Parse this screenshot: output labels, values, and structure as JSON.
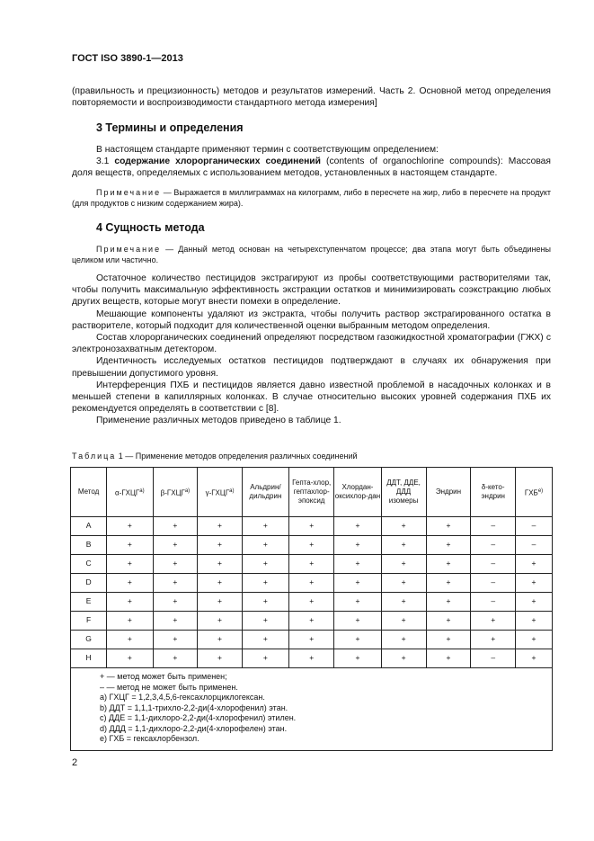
{
  "header": "ГОСТ ISO 3890-1—2013",
  "intro": "(правильность и прецизионность) методов и результатов измерений. Часть 2. Основной метод определения повторяемости и воспроизводимости стандартного метода измерения]",
  "s3": {
    "title": "3 Термины и определения",
    "p1": "В настоящем стандарте применяют термин с соответствующим определением:",
    "term_num": "3.1 ",
    "term": "содержание хлорорганических соединений",
    "term_rest": " (contents of organochlorine compounds): Массовая доля веществ, определяемых с использованием методов, установленных в настоящем стандарте.",
    "note_label": "Примечание",
    "note": " — Выражается в миллиграммах на килограмм, либо в пересчете на жир, либо в пересчете на продукт (для продуктов с низким содержанием жира)."
  },
  "s4": {
    "title": "4 Сущность метода",
    "note_label": "Примечание",
    "note": " — Данный метод основан на четырехступенчатом процессе; два этапа могут быть объединены целиком или частично.",
    "paras": [
      "Остаточное количество пестицидов экстрагируют из пробы соответствующими растворителями так, чтобы получить максимальную эффективность экстракции остатков и минимизировать соэкстракцию любых других веществ, которые могут внести помехи в определение.",
      "Мешающие компоненты удаляют из экстракта, чтобы получить раствор экстрагированного остатка в растворителе, который подходит для количественной оценки выбранным методом определения.",
      "Состав хлорорганических соединений определяют посредством газожидкостной хроматографии (ГЖХ) с электронозахватным детектором.",
      "Идентичность исследуемых остатков пестицидов подтверждают в случаях их обнаружения при превышении допустимого уровня.",
      "Интерференция ПХБ и пестицидов является давно известной проблемой в насадочных колонках и в меньшей степени в капиллярных колонках. В случае относительно высоких уровней содержания ПХБ их рекомендуется определять в соответствии с [8].",
      "Применение различных методов приведено в таблице 1."
    ]
  },
  "table": {
    "caption_label": "Таблица",
    "caption": " 1 — Применение методов определения различных соединений",
    "headers": [
      "Метод",
      "α-ГХЦГ",
      "β-ГХЦГ",
      "γ-ГХЦГ",
      "Альдрин/ дильдрин",
      "Гепта-хлор, гептахлор-эпоксид",
      "Хлордан-оксихлор-дан",
      "ДДТ, ДДЕ, ДДД изомеры",
      "Эндрин",
      "δ-кето-эндрин",
      "ГХБ"
    ],
    "rows": [
      [
        "A",
        "+",
        "+",
        "+",
        "+",
        "+",
        "+",
        "+",
        "+",
        "–",
        "–"
      ],
      [
        "B",
        "+",
        "+",
        "+",
        "+",
        "+",
        "+",
        "+",
        "+",
        "–",
        "–"
      ],
      [
        "C",
        "+",
        "+",
        "+",
        "+",
        "+",
        "+",
        "+",
        "+",
        "–",
        "+"
      ],
      [
        "D",
        "+",
        "+",
        "+",
        "+",
        "+",
        "+",
        "+",
        "+",
        "–",
        "+"
      ],
      [
        "E",
        "+",
        "+",
        "+",
        "+",
        "+",
        "+",
        "+",
        "+",
        "–",
        "+"
      ],
      [
        "F",
        "+",
        "+",
        "+",
        "+",
        "+",
        "+",
        "+",
        "+",
        "+",
        "+"
      ],
      [
        "G",
        "+",
        "+",
        "+",
        "+",
        "+",
        "+",
        "+",
        "+",
        "+",
        "+"
      ],
      [
        "H",
        "+",
        "+",
        "+",
        "+",
        "+",
        "+",
        "+",
        "+",
        "–",
        "+"
      ]
    ],
    "footnotes": [
      "+ — метод может быть применен;",
      "– — метод не может быть применен.",
      "a) ГХЦГ = 1,2,3,4,5,6-гексахлорциклогексан.",
      "b) ДДТ = 1,1,1-трихло-2,2-ди(4-хлорофенил) этан.",
      "c) ДДЕ = 1,1-дихлоро-2,2-ди(4-хлорофенил) этилен.",
      "d) ДДД = 1,1-дихлоро-2,2-ди(4-хлорофелен) этан.",
      "e) ГХБ = гексахлорбензол."
    ]
  },
  "page_number": "2"
}
